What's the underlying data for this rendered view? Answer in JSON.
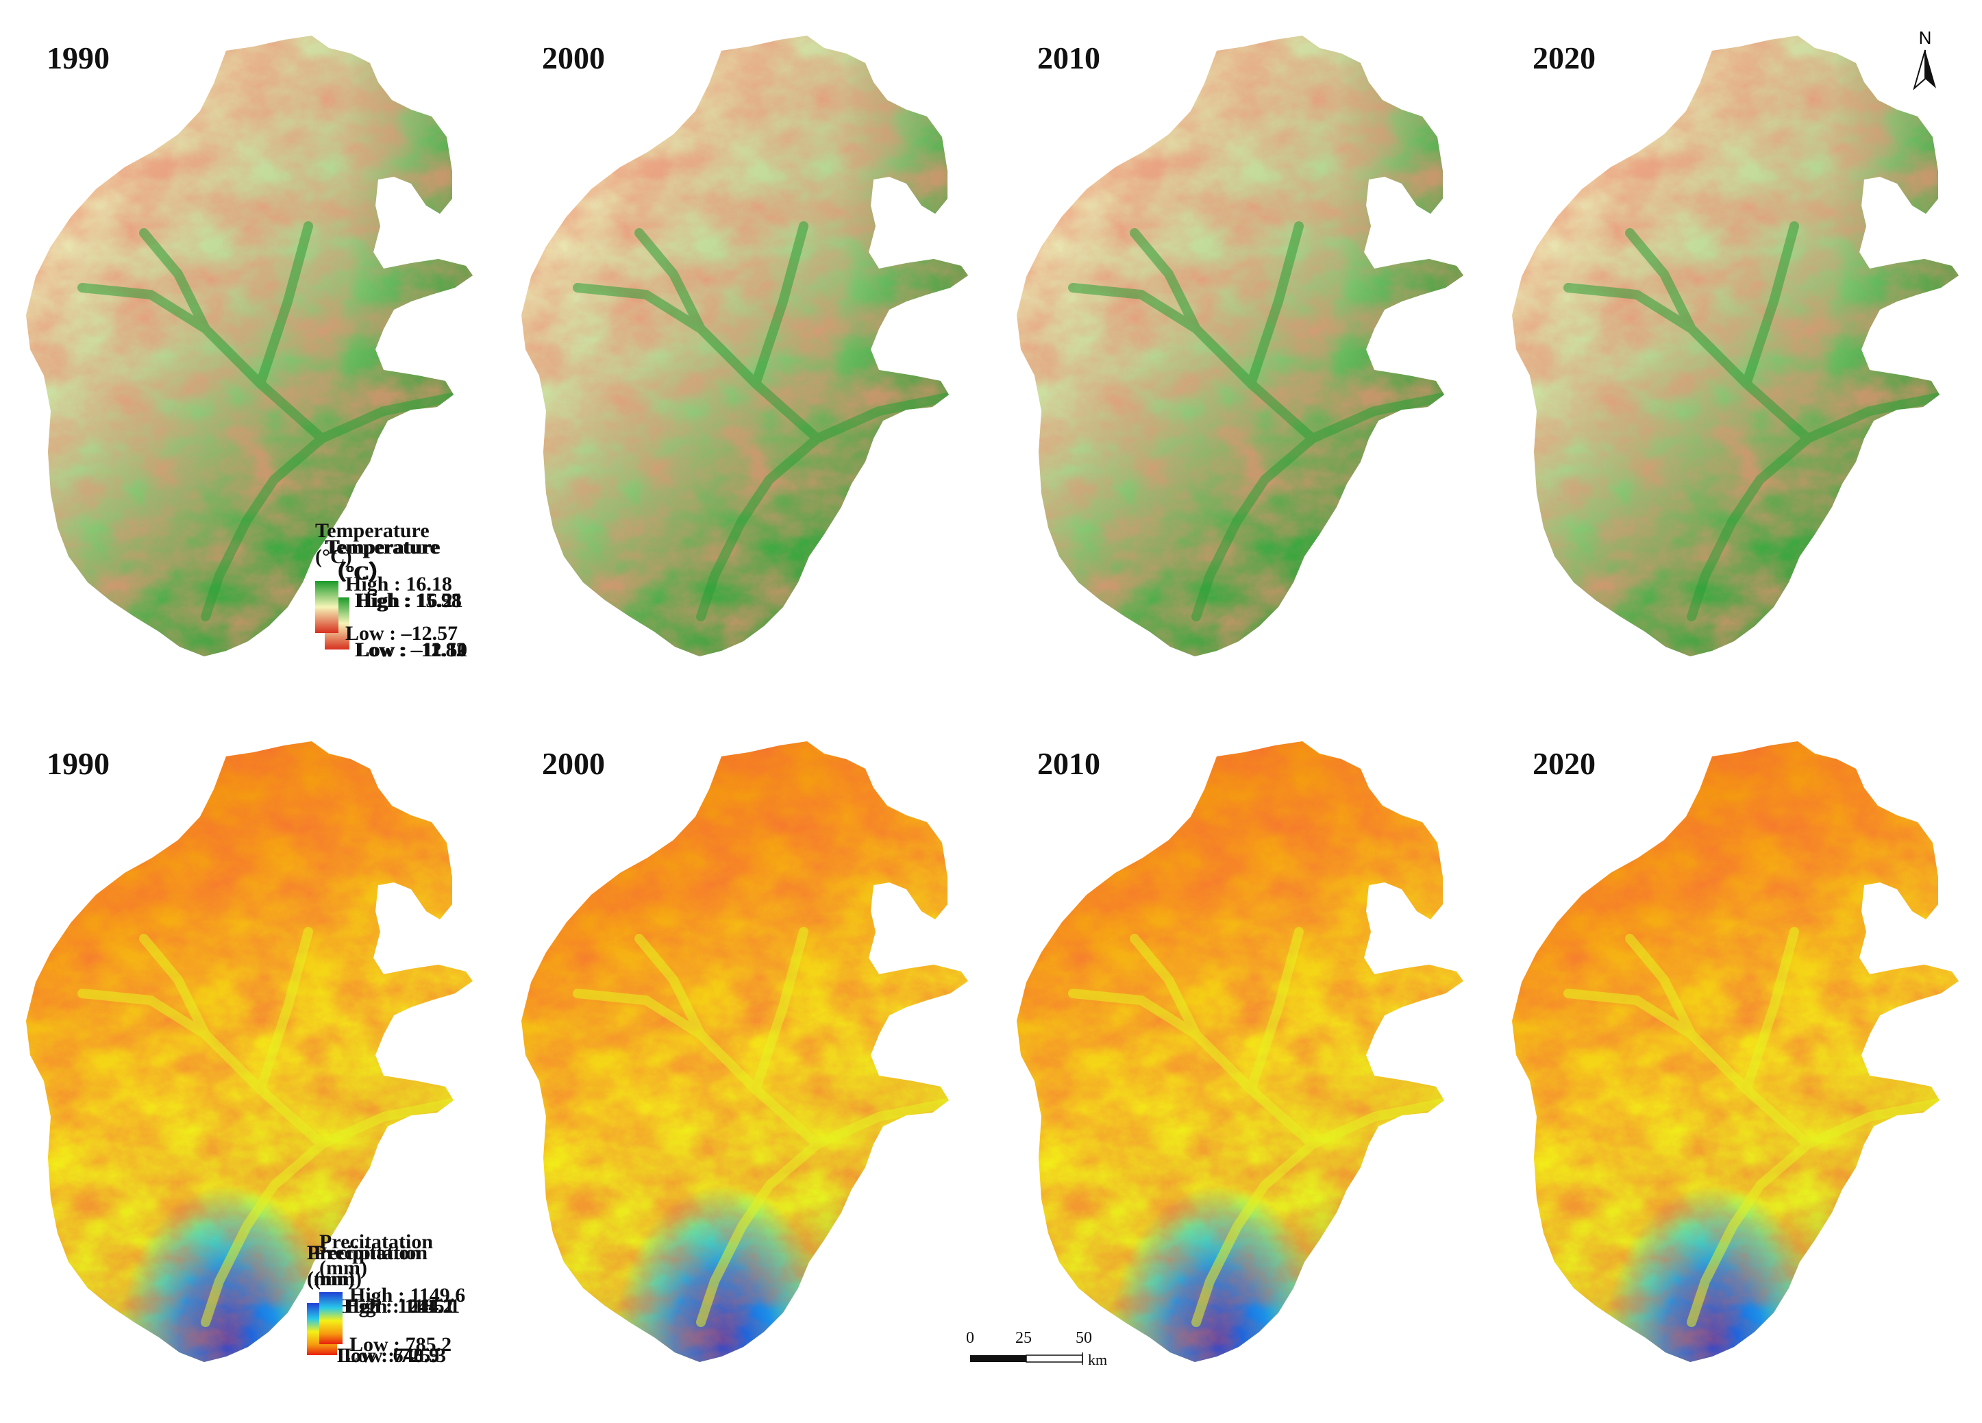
{
  "rows": [
    {
      "variable": "temperature",
      "panels": [
        {
          "year": "1990",
          "title": "Temperature",
          "unit": "（°C）",
          "high": "High : 15.93",
          "low": "Low : –11.82"
        },
        {
          "year": "2000",
          "title": "Temperature",
          "unit": "（°C）",
          "high": "High : 15.58",
          "low": "Low : –12.10"
        },
        {
          "year": "2010",
          "title": "Temperature",
          "unit": "（°C）",
          "high": "High : 16.21",
          "low": "Low : –11.51"
        },
        {
          "year": "2020",
          "title": "Temperature",
          "unit": "(°C)",
          "high": "High : 16.18",
          "low": "Low : –12.57"
        }
      ],
      "colors": {
        "high": "#1a9a2a",
        "mid": "#f6f4b8",
        "low": "#d7301f"
      }
    },
    {
      "variable": "precipitation",
      "panels": [
        {
          "year": "1990",
          "title": "Precipitation",
          "unit": "(mm)",
          "high": "High : 1244.1",
          "low": "Low : 748.5"
        },
        {
          "year": "2000",
          "title": "Precipitation",
          "unit": "(mm)",
          "high": "High : 1011.2",
          "low": "Low : 640.9"
        },
        {
          "year": "2010",
          "title": "Precipitation",
          "unit": "(mm)",
          "high": "High : 1185.1",
          "low": "Low : 725.3"
        },
        {
          "year": "2020",
          "title": "Precitatation",
          "unit": "(mm)",
          "high": "High : 1149.6",
          "low": "Low : 785.2"
        }
      ],
      "colors": {
        "high": "#1f3fd6",
        "mid": "#f4f018",
        "low": "#e81e0e"
      }
    }
  ],
  "north_arrow": {
    "label": "N"
  },
  "scale_bar": {
    "ticks": [
      "0",
      "25",
      "50"
    ],
    "unit": "km"
  }
}
